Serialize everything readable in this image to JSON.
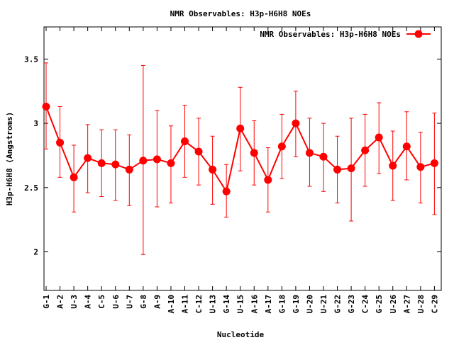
{
  "chart_data": {
    "type": "line",
    "title": "NMR Observables: H3p-H6H8 NOEs",
    "xlabel": "Nucleotide",
    "ylabel": "H3p-H6H8 (Angstroms)",
    "ylim": [
      1.7,
      3.75
    ],
    "yticks": [
      "2",
      "2.5",
      "3",
      "3.5"
    ],
    "ytick_values": [
      2,
      2.5,
      3,
      3.5
    ],
    "grid": false,
    "legend_position": "top-right",
    "categories": [
      "G-1",
      "A-2",
      "U-3",
      "A-4",
      "C-5",
      "U-6",
      "U-7",
      "G-8",
      "A-9",
      "A-10",
      "A-11",
      "C-12",
      "U-13",
      "G-14",
      "U-15",
      "A-16",
      "A-17",
      "G-18",
      "G-19",
      "U-20",
      "U-21",
      "G-22",
      "G-23",
      "C-24",
      "G-25",
      "U-26",
      "A-27",
      "U-28",
      "C-29"
    ],
    "series": [
      {
        "name": "NMR Observables: H3p-H6H8 NOEs",
        "color": "#ff0000",
        "values": [
          3.13,
          2.85,
          2.58,
          2.73,
          2.69,
          2.68,
          2.64,
          2.71,
          2.72,
          2.69,
          2.86,
          2.78,
          2.64,
          2.47,
          2.96,
          2.77,
          2.56,
          2.82,
          3.0,
          2.77,
          2.74,
          2.64,
          2.65,
          2.79,
          2.89,
          2.67,
          2.82,
          2.66,
          2.69
        ],
        "err_low": [
          2.8,
          2.58,
          2.31,
          2.46,
          2.43,
          2.4,
          2.36,
          1.98,
          2.35,
          2.38,
          2.58,
          2.52,
          2.37,
          2.27,
          2.63,
          2.52,
          2.31,
          2.57,
          2.74,
          2.51,
          2.47,
          2.38,
          2.24,
          2.51,
          2.61,
          2.4,
          2.56,
          2.38,
          2.29
        ],
        "err_high": [
          3.47,
          3.13,
          2.83,
          2.99,
          2.95,
          2.95,
          2.91,
          3.45,
          3.1,
          2.98,
          3.14,
          3.04,
          2.9,
          2.68,
          3.28,
          3.02,
          2.81,
          3.07,
          3.25,
          3.04,
          3.0,
          2.9,
          3.04,
          3.07,
          3.16,
          2.94,
          3.09,
          2.93,
          3.08
        ]
      }
    ]
  }
}
